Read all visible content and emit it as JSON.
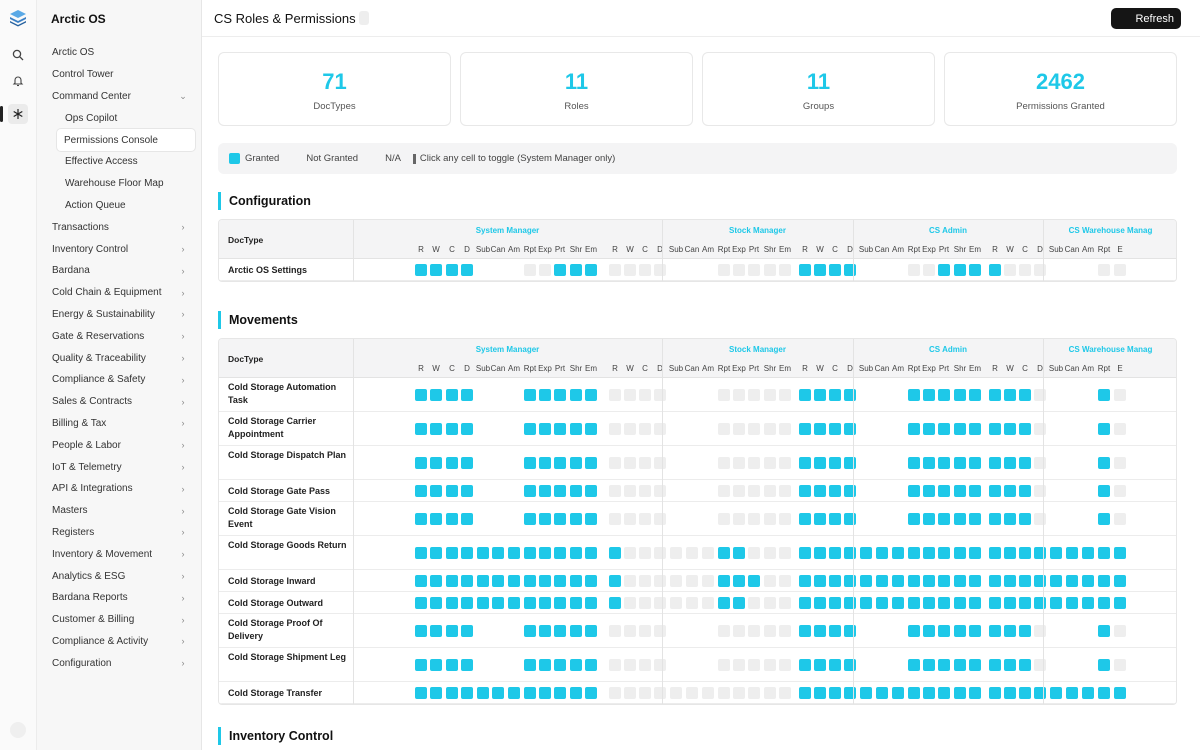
{
  "app": {
    "name": "Arctic OS"
  },
  "header": {
    "title": "CS Roles & Permissions",
    "refresh_label": "Refresh"
  },
  "colors": {
    "accent": "#1ec8e8",
    "granted": "#1ec8e8",
    "not_granted": "#eeeeee",
    "button": "#151515"
  },
  "rail": {
    "icons": [
      "logo-icon",
      "search-icon",
      "bell-icon",
      "snowflake-icon"
    ]
  },
  "sidebar": {
    "items": [
      {
        "label": "Arctic OS",
        "level": 0
      },
      {
        "label": "Control Tower",
        "level": 0
      },
      {
        "label": "Command Center",
        "level": 0,
        "expanded": true
      },
      {
        "label": "Ops Copilot",
        "level": 1
      },
      {
        "label": "Permissions Console",
        "level": 1,
        "active": true
      },
      {
        "label": "Effective Access",
        "level": 1
      },
      {
        "label": "Warehouse Floor Map",
        "level": 1
      },
      {
        "label": "Action Queue",
        "level": 1
      },
      {
        "label": "Transactions",
        "level": 0,
        "chevron": true
      },
      {
        "label": "Inventory Control",
        "level": 0,
        "chevron": true
      },
      {
        "label": "Bardana",
        "level": 0,
        "chevron": true
      },
      {
        "label": "Cold Chain & Equipment",
        "level": 0,
        "chevron": true
      },
      {
        "label": "Energy & Sustainability",
        "level": 0,
        "chevron": true
      },
      {
        "label": "Gate & Reservations",
        "level": 0,
        "chevron": true
      },
      {
        "label": "Quality & Traceability",
        "level": 0,
        "chevron": true
      },
      {
        "label": "Compliance & Safety",
        "level": 0,
        "chevron": true
      },
      {
        "label": "Sales & Contracts",
        "level": 0,
        "chevron": true
      },
      {
        "label": "Billing & Tax",
        "level": 0,
        "chevron": true
      },
      {
        "label": "People & Labor",
        "level": 0,
        "chevron": true
      },
      {
        "label": "IoT & Telemetry",
        "level": 0,
        "chevron": true
      },
      {
        "label": "API & Integrations",
        "level": 0,
        "chevron": true
      },
      {
        "label": "Masters",
        "level": 0,
        "chevron": true
      },
      {
        "label": "Registers",
        "level": 0,
        "chevron": true
      },
      {
        "label": "Inventory & Movement",
        "level": 0,
        "chevron": true
      },
      {
        "label": "Analytics & ESG",
        "level": 0,
        "chevron": true
      },
      {
        "label": "Bardana Reports",
        "level": 0,
        "chevron": true
      },
      {
        "label": "Customer & Billing",
        "level": 0,
        "chevron": true
      },
      {
        "label": "Compliance & Activity",
        "level": 0,
        "chevron": true
      },
      {
        "label": "Configuration",
        "level": 0,
        "chevron": true
      }
    ]
  },
  "stats": [
    {
      "value": "71",
      "label": "DocTypes"
    },
    {
      "value": "11",
      "label": "Roles"
    },
    {
      "value": "11",
      "label": "Groups"
    },
    {
      "value": "2462",
      "label": "Permissions Granted"
    }
  ],
  "legend": {
    "granted": "Granted",
    "not_granted": "Not Granted",
    "na": "N/A",
    "hint": "Click any cell to toggle (System Manager only)"
  },
  "grid": {
    "doctype_header": "DocType",
    "roles": [
      {
        "name": "System Manager",
        "perms": [
          "R",
          "W",
          "C",
          "D",
          "Sub",
          "Can",
          "Am",
          "Rpt",
          "Exp",
          "Prt",
          "Shr",
          "Em"
        ]
      },
      {
        "name": "Stock Manager",
        "perms": [
          "R",
          "W",
          "C",
          "D",
          "Sub",
          "Can",
          "Am",
          "Rpt",
          "Exp",
          "Prt",
          "Shr",
          "Em"
        ]
      },
      {
        "name": "CS Admin",
        "perms": [
          "R",
          "W",
          "C",
          "D",
          "Sub",
          "Can",
          "Am",
          "Rpt",
          "Exp",
          "Prt",
          "Shr",
          "Em"
        ]
      },
      {
        "name": "CS Warehouse Manag",
        "perms": [
          "R",
          "W",
          "C",
          "D",
          "Sub",
          "Can",
          "Am",
          "Rpt",
          "E"
        ]
      }
    ]
  },
  "sections": [
    {
      "title": "Configuration",
      "rows": [
        {
          "name": "Arctic OS Settings",
          "tall": false,
          "cells": [
            "g",
            "g",
            "g",
            "g",
            "",
            "",
            "",
            "n",
            "n",
            "g",
            "g",
            "g",
            "n",
            "n",
            "n",
            "n",
            "",
            "",
            "",
            "n",
            "n",
            "n",
            "n",
            "n",
            "g",
            "g",
            "g",
            "g",
            "",
            "",
            "",
            "n",
            "n",
            "g",
            "g",
            "g",
            "g",
            "n",
            "n",
            "n",
            "",
            "",
            "",
            "n",
            "n"
          ]
        }
      ]
    },
    {
      "title": "Movements",
      "rows": [
        {
          "name": "Cold Storage Automation Task",
          "tall": true,
          "cells": [
            "g",
            "g",
            "g",
            "g",
            "",
            "",
            "",
            "g",
            "g",
            "g",
            "g",
            "g",
            "n",
            "n",
            "n",
            "n",
            "",
            "",
            "",
            "n",
            "n",
            "n",
            "n",
            "n",
            "g",
            "g",
            "g",
            "g",
            "",
            "",
            "",
            "g",
            "g",
            "g",
            "g",
            "g",
            "g",
            "g",
            "g",
            "n",
            "",
            "",
            "",
            "g",
            "n"
          ]
        },
        {
          "name": "Cold Storage Carrier Appointment",
          "tall": true,
          "cells": [
            "g",
            "g",
            "g",
            "g",
            "",
            "",
            "",
            "g",
            "g",
            "g",
            "g",
            "g",
            "n",
            "n",
            "n",
            "n",
            "",
            "",
            "",
            "n",
            "n",
            "n",
            "n",
            "n",
            "g",
            "g",
            "g",
            "g",
            "",
            "",
            "",
            "g",
            "g",
            "g",
            "g",
            "g",
            "g",
            "g",
            "g",
            "n",
            "",
            "",
            "",
            "g",
            "n"
          ]
        },
        {
          "name": "Cold Storage Dispatch Plan",
          "tall": true,
          "cells": [
            "g",
            "g",
            "g",
            "g",
            "",
            "",
            "",
            "g",
            "g",
            "g",
            "g",
            "g",
            "n",
            "n",
            "n",
            "n",
            "",
            "",
            "",
            "n",
            "n",
            "n",
            "n",
            "n",
            "g",
            "g",
            "g",
            "g",
            "",
            "",
            "",
            "g",
            "g",
            "g",
            "g",
            "g",
            "g",
            "g",
            "g",
            "n",
            "",
            "",
            "",
            "g",
            "n"
          ]
        },
        {
          "name": "Cold Storage Gate Pass",
          "tall": false,
          "cells": [
            "g",
            "g",
            "g",
            "g",
            "",
            "",
            "",
            "g",
            "g",
            "g",
            "g",
            "g",
            "n",
            "n",
            "n",
            "n",
            "",
            "",
            "",
            "n",
            "n",
            "n",
            "n",
            "n",
            "g",
            "g",
            "g",
            "g",
            "",
            "",
            "",
            "g",
            "g",
            "g",
            "g",
            "g",
            "g",
            "g",
            "g",
            "n",
            "",
            "",
            "",
            "g",
            "n"
          ]
        },
        {
          "name": "Cold Storage Gate Vision Event",
          "tall": true,
          "cells": [
            "g",
            "g",
            "g",
            "g",
            "",
            "",
            "",
            "g",
            "g",
            "g",
            "g",
            "g",
            "n",
            "n",
            "n",
            "n",
            "",
            "",
            "",
            "n",
            "n",
            "n",
            "n",
            "n",
            "g",
            "g",
            "g",
            "g",
            "",
            "",
            "",
            "g",
            "g",
            "g",
            "g",
            "g",
            "g",
            "g",
            "g",
            "n",
            "",
            "",
            "",
            "g",
            "n"
          ]
        },
        {
          "name": "Cold Storage Goods Return",
          "tall": true,
          "cells": [
            "g",
            "g",
            "g",
            "g",
            "g",
            "g",
            "g",
            "g",
            "g",
            "g",
            "g",
            "g",
            "g",
            "n",
            "n",
            "n",
            "n",
            "n",
            "n",
            "g",
            "g",
            "n",
            "n",
            "n",
            "g",
            "g",
            "g",
            "g",
            "g",
            "g",
            "g",
            "g",
            "g",
            "g",
            "g",
            "g",
            "g",
            "g",
            "g",
            "g",
            "g",
            "g",
            "g",
            "g",
            "g"
          ]
        },
        {
          "name": "Cold Storage Inward",
          "tall": false,
          "cells": [
            "g",
            "g",
            "g",
            "g",
            "g",
            "g",
            "g",
            "g",
            "g",
            "g",
            "g",
            "g",
            "g",
            "n",
            "n",
            "n",
            "n",
            "n",
            "n",
            "g",
            "g",
            "g",
            "n",
            "n",
            "g",
            "g",
            "g",
            "g",
            "g",
            "g",
            "g",
            "g",
            "g",
            "g",
            "g",
            "g",
            "g",
            "g",
            "g",
            "g",
            "g",
            "g",
            "g",
            "g",
            "g"
          ]
        },
        {
          "name": "Cold Storage Outward",
          "tall": false,
          "cells": [
            "g",
            "g",
            "g",
            "g",
            "g",
            "g",
            "g",
            "g",
            "g",
            "g",
            "g",
            "g",
            "g",
            "n",
            "n",
            "n",
            "n",
            "n",
            "n",
            "g",
            "g",
            "n",
            "n",
            "n",
            "g",
            "g",
            "g",
            "g",
            "g",
            "g",
            "g",
            "g",
            "g",
            "g",
            "g",
            "g",
            "g",
            "g",
            "g",
            "g",
            "g",
            "g",
            "g",
            "g",
            "g"
          ]
        },
        {
          "name": "Cold Storage Proof Of Delivery",
          "tall": true,
          "cells": [
            "g",
            "g",
            "g",
            "g",
            "",
            "",
            "",
            "g",
            "g",
            "g",
            "g",
            "g",
            "n",
            "n",
            "n",
            "n",
            "",
            "",
            "",
            "n",
            "n",
            "n",
            "n",
            "n",
            "g",
            "g",
            "g",
            "g",
            "",
            "",
            "",
            "g",
            "g",
            "g",
            "g",
            "g",
            "g",
            "g",
            "g",
            "n",
            "",
            "",
            "",
            "g",
            "n"
          ]
        },
        {
          "name": "Cold Storage Shipment Leg",
          "tall": true,
          "cells": [
            "g",
            "g",
            "g",
            "g",
            "",
            "",
            "",
            "g",
            "g",
            "g",
            "g",
            "g",
            "n",
            "n",
            "n",
            "n",
            "",
            "",
            "",
            "n",
            "n",
            "n",
            "n",
            "n",
            "g",
            "g",
            "g",
            "g",
            "",
            "",
            "",
            "g",
            "g",
            "g",
            "g",
            "g",
            "g",
            "g",
            "g",
            "n",
            "",
            "",
            "",
            "g",
            "n"
          ]
        },
        {
          "name": "Cold Storage Transfer",
          "tall": false,
          "cells": [
            "g",
            "g",
            "g",
            "g",
            "g",
            "g",
            "g",
            "g",
            "g",
            "g",
            "g",
            "g",
            "n",
            "n",
            "n",
            "n",
            "n",
            "n",
            "n",
            "n",
            "n",
            "n",
            "n",
            "n",
            "g",
            "g",
            "g",
            "g",
            "g",
            "g",
            "g",
            "g",
            "g",
            "g",
            "g",
            "g",
            "g",
            "g",
            "g",
            "g",
            "g",
            "g",
            "g",
            "g",
            "g"
          ]
        }
      ]
    },
    {
      "title": "Inventory Control",
      "rows": []
    }
  ]
}
